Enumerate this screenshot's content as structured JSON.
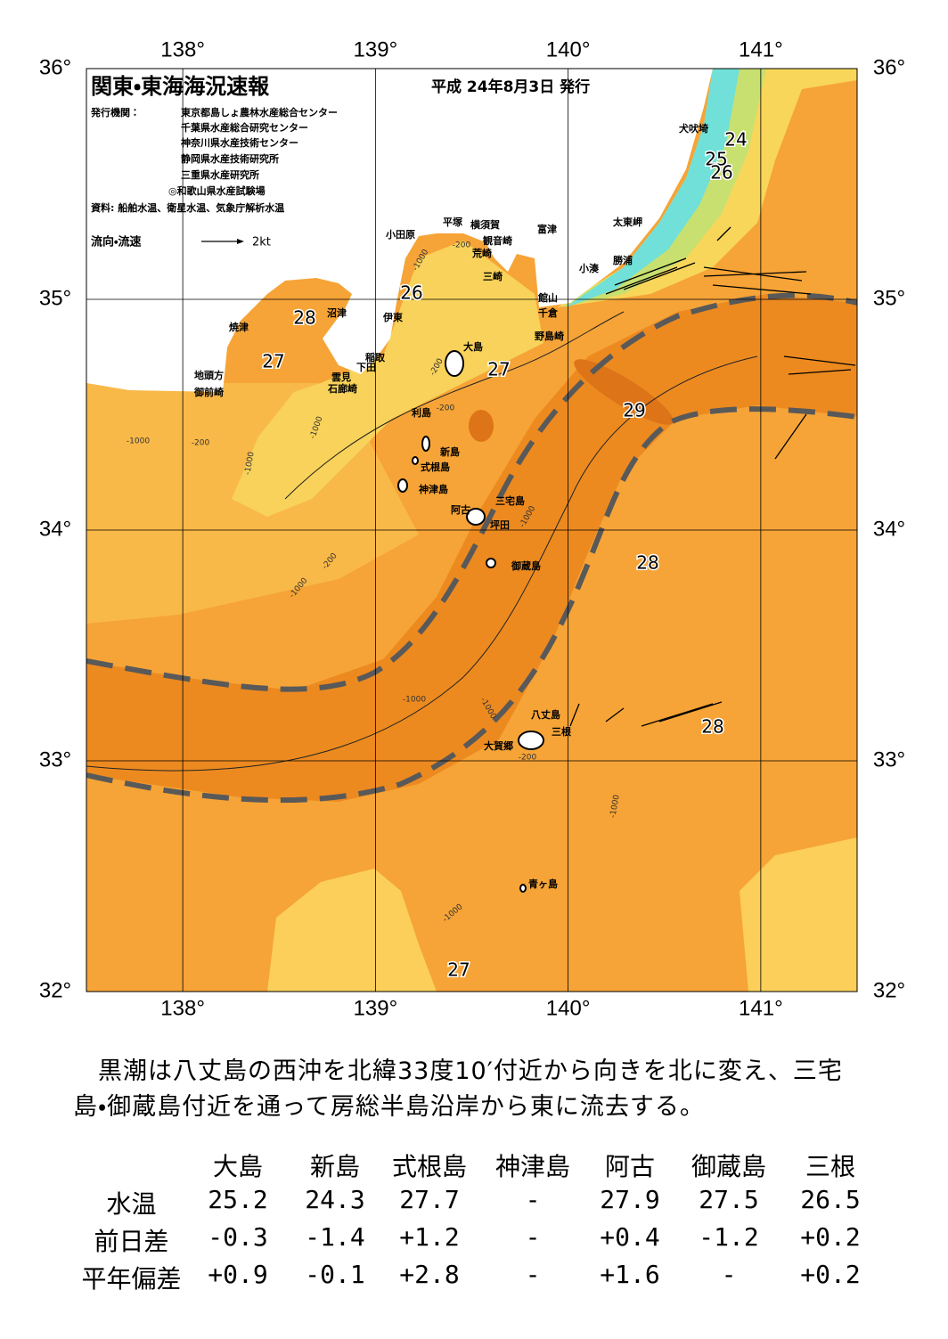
{
  "map": {
    "title": "関東・東海海況速報",
    "issue_date": "平成 24年8月3日 発行",
    "publisher_label": "発行機関：",
    "publishers": [
      "東京都島しょ農林水産総合センター",
      "千葉県水産総合研究センター",
      "神奈川県水産技術センター",
      "静岡県水産技術研究所",
      "三重県水産研究所",
      "◎和歌山県水産試験場"
    ],
    "source": "資料: 船舶水温、衛星水温、気象庁解析水温",
    "legend_label": "流向・流速",
    "legend_speed": "2kt",
    "lon_range": [
      137.5,
      141.5
    ],
    "lat_range": [
      32,
      36
    ],
    "lon_ticks": [
      {
        "value": 138,
        "label": "138°"
      },
      {
        "value": 139,
        "label": "139°"
      },
      {
        "value": 140,
        "label": "140°"
      },
      {
        "value": 141,
        "label": "141°"
      }
    ],
    "lat_ticks": [
      {
        "value": 36,
        "label": "36°"
      },
      {
        "value": 35,
        "label": "35°"
      },
      {
        "value": 34,
        "label": "34°"
      },
      {
        "value": 33,
        "label": "33°"
      },
      {
        "value": 32,
        "label": "32°"
      }
    ],
    "places": [
      "犬吠埼",
      "太東岬",
      "勝浦",
      "小湊",
      "館山",
      "千倉",
      "野島崎",
      "富津",
      "横須賀",
      "観音崎",
      "荒崎",
      "三崎",
      "平塚",
      "小田原",
      "沼津",
      "伊東",
      "焼津",
      "稲取",
      "下田",
      "雲見",
      "石廊崎",
      "地頭方",
      "御前崎",
      "大島",
      "利島",
      "新島",
      "式根島",
      "神津島",
      "三宅島",
      "阿古",
      "坪田",
      "御蔵島",
      "八丈島",
      "三根",
      "大賀郷",
      "青ヶ島"
    ],
    "temperature_labels": [
      28,
      27,
      26,
      27,
      24,
      25,
      26,
      29,
      28,
      28,
      27
    ],
    "depth_labels": [
      -200,
      -1000,
      -200,
      -200,
      -1000,
      -200,
      -1000,
      -1000,
      -200,
      -1000,
      -1000,
      -1000,
      -200,
      -1000,
      -1000,
      -1000
    ]
  },
  "description": "黒潮は八丈島の西沖を北緯33度10′付近から向きを北に変え、三宅島・御蔵島付近を通って房総半島沿岸から東に流去する。",
  "table": {
    "columns": [
      "大島",
      "新島",
      "式根島",
      "神津島",
      "阿古",
      "御蔵島",
      "三根"
    ],
    "rows": [
      {
        "label": "水温",
        "values": [
          "25.2",
          "24.3",
          "27.7",
          "-",
          "27.9",
          "27.5",
          "26.5"
        ]
      },
      {
        "label": "前日差",
        "values": [
          "-0.3",
          "-1.4",
          "+1.2",
          "-",
          "+0.4",
          "-1.2",
          "+0.2"
        ]
      },
      {
        "label": "平年偏差",
        "values": [
          "+0.9",
          "-0.1",
          "+2.8",
          "-",
          "+1.6",
          "-",
          "+0.2"
        ]
      }
    ]
  }
}
